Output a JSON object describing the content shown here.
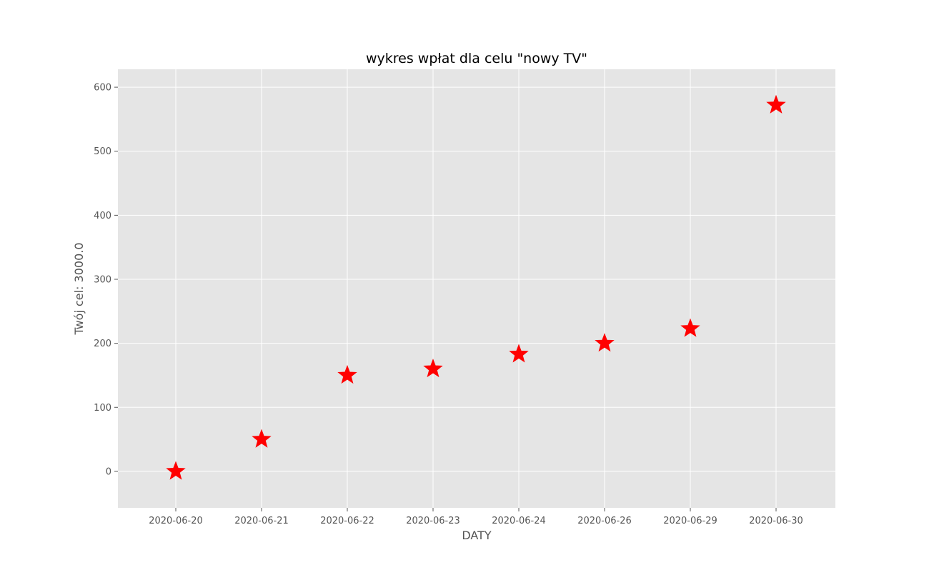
{
  "chart_data": {
    "type": "scatter",
    "title": "wykres wpłat dla celu \"nowy TV\"",
    "xlabel": "DATY",
    "ylabel": "Twój cel: 3000.0",
    "categories": [
      "2020-06-20",
      "2020-06-21",
      "2020-06-22",
      "2020-06-23",
      "2020-06-24",
      "2020-06-26",
      "2020-06-29",
      "2020-06-30"
    ],
    "values": [
      0,
      50,
      150,
      160,
      183,
      200,
      223,
      572
    ],
    "yticks": [
      0,
      100,
      200,
      300,
      400,
      500,
      600
    ],
    "ylim": [
      -57,
      628
    ],
    "grid": true,
    "marker": "star",
    "colors": {
      "marker": "#ff0000",
      "panel": "#e5e5e5",
      "grid": "#ffffff"
    }
  }
}
